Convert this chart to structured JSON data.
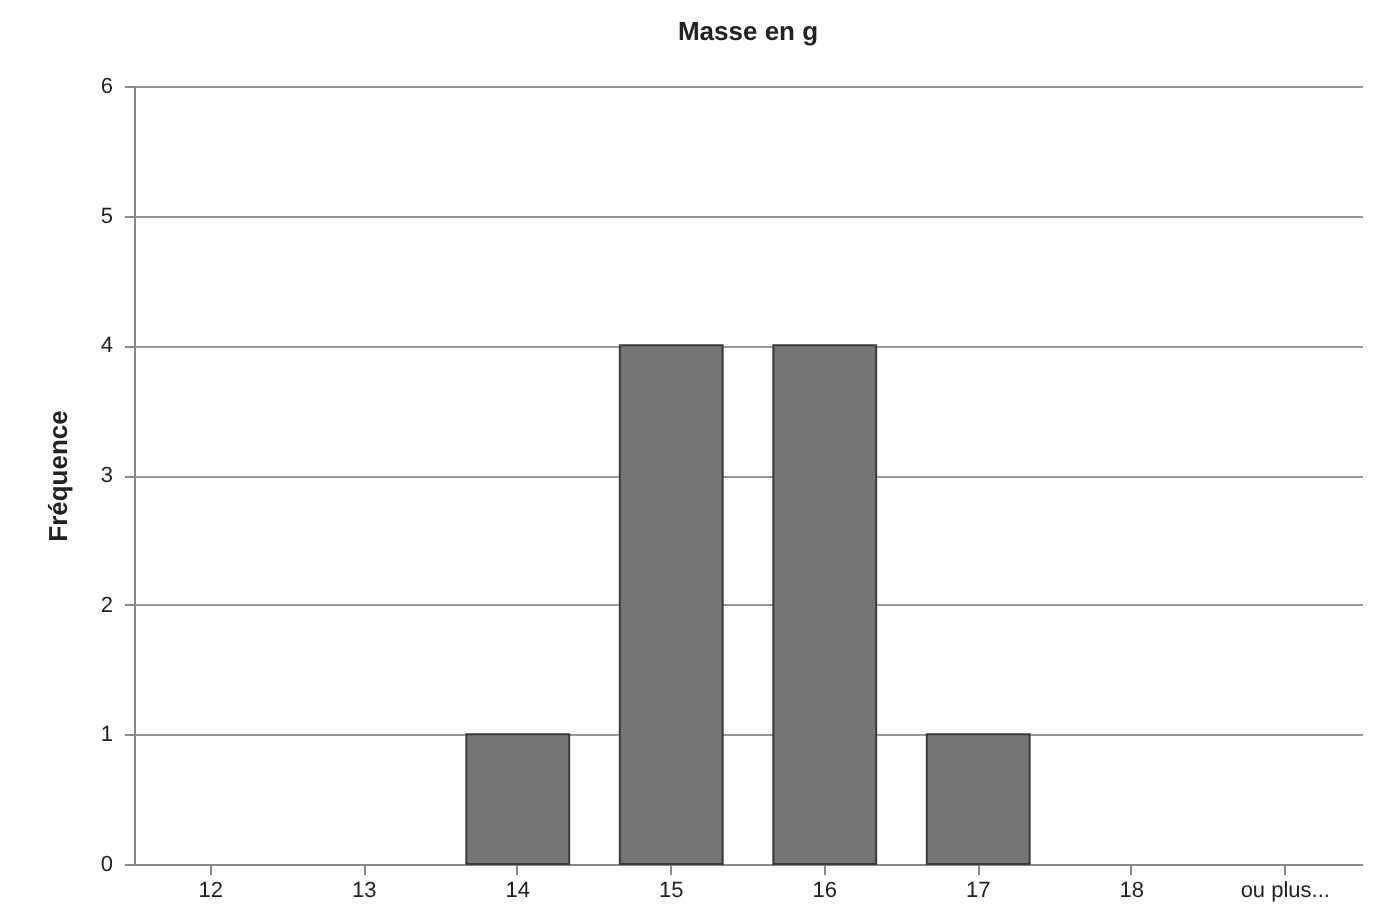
{
  "chart_data": {
    "type": "bar",
    "title": "Masse en g",
    "ylabel": "Fréquence",
    "categories": [
      "12",
      "13",
      "14",
      "15",
      "16",
      "17",
      "18",
      "ou plus..."
    ],
    "values": [
      0,
      0,
      1,
      4,
      4,
      1,
      0,
      0
    ],
    "color": "#757575",
    "ylim": [
      0,
      6
    ],
    "yticks": [
      0,
      1,
      2,
      3,
      4,
      5,
      6
    ],
    "grid": "y"
  }
}
